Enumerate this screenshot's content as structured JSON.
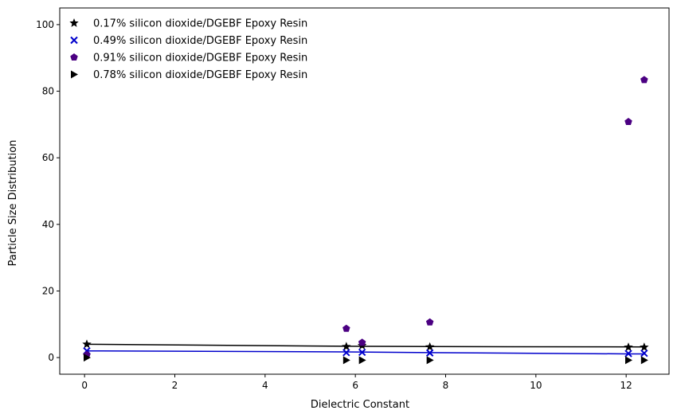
{
  "chart_data": {
    "type": "scatter",
    "title": "",
    "xlabel": "Dielectric Constant",
    "ylabel": "Particle Size Distribution",
    "xlim": [
      -0.55,
      12.95
    ],
    "ylim": [
      -5,
      105
    ],
    "xticks": [
      0,
      2,
      4,
      6,
      8,
      10,
      12
    ],
    "yticks": [
      0,
      20,
      40,
      60,
      80,
      100
    ],
    "grid": false,
    "legend_position": "top-left",
    "series": [
      {
        "name": "0.17% silicon dioxide/DGEBF Epoxy Resin",
        "marker": "star",
        "color": "#000000",
        "x": [
          0.05,
          5.8,
          6.15,
          7.65,
          12.05,
          12.4
        ],
        "y": [
          4.0,
          3.3,
          3.6,
          3.2,
          3.1,
          3.1
        ],
        "fit_line": true,
        "fit": [
          [
            0.05,
            4.0
          ],
          [
            5.8,
            3.4
          ],
          [
            7.65,
            3.3
          ],
          [
            12.4,
            3.2
          ]
        ]
      },
      {
        "name": "0.49% silicon dioxide/DGEBF Epoxy Resin",
        "marker": "x",
        "color": "#0000cc",
        "x": [
          0.05,
          5.8,
          6.15,
          7.65,
          12.05,
          12.4
        ],
        "y": [
          2.0,
          1.5,
          1.6,
          1.4,
          1.2,
          1.3
        ],
        "fit_line": true,
        "fit": [
          [
            0.05,
            2.0
          ],
          [
            5.8,
            1.7
          ],
          [
            7.65,
            1.5
          ],
          [
            12.05,
            1.1
          ],
          [
            12.4,
            1.1
          ]
        ]
      },
      {
        "name": "0.91% silicon dioxide/DGEBF Epoxy Resin",
        "marker": "pentagon",
        "color": "#4b0082",
        "x": [
          0.05,
          5.8,
          6.15,
          7.65,
          12.05,
          12.4
        ],
        "y": [
          0.8,
          8.7,
          4.5,
          10.6,
          70.8,
          83.4
        ],
        "fit_line": false
      },
      {
        "name": "0.78% silicon dioxide/DGEBF Epoxy Resin",
        "marker": "triangle-right",
        "color": "#000000",
        "x": [
          0.05,
          5.8,
          6.15,
          7.65,
          12.05,
          12.4
        ],
        "y": [
          0.0,
          -0.8,
          -0.8,
          -0.8,
          -0.8,
          -0.8
        ],
        "fit_line": false
      }
    ]
  }
}
